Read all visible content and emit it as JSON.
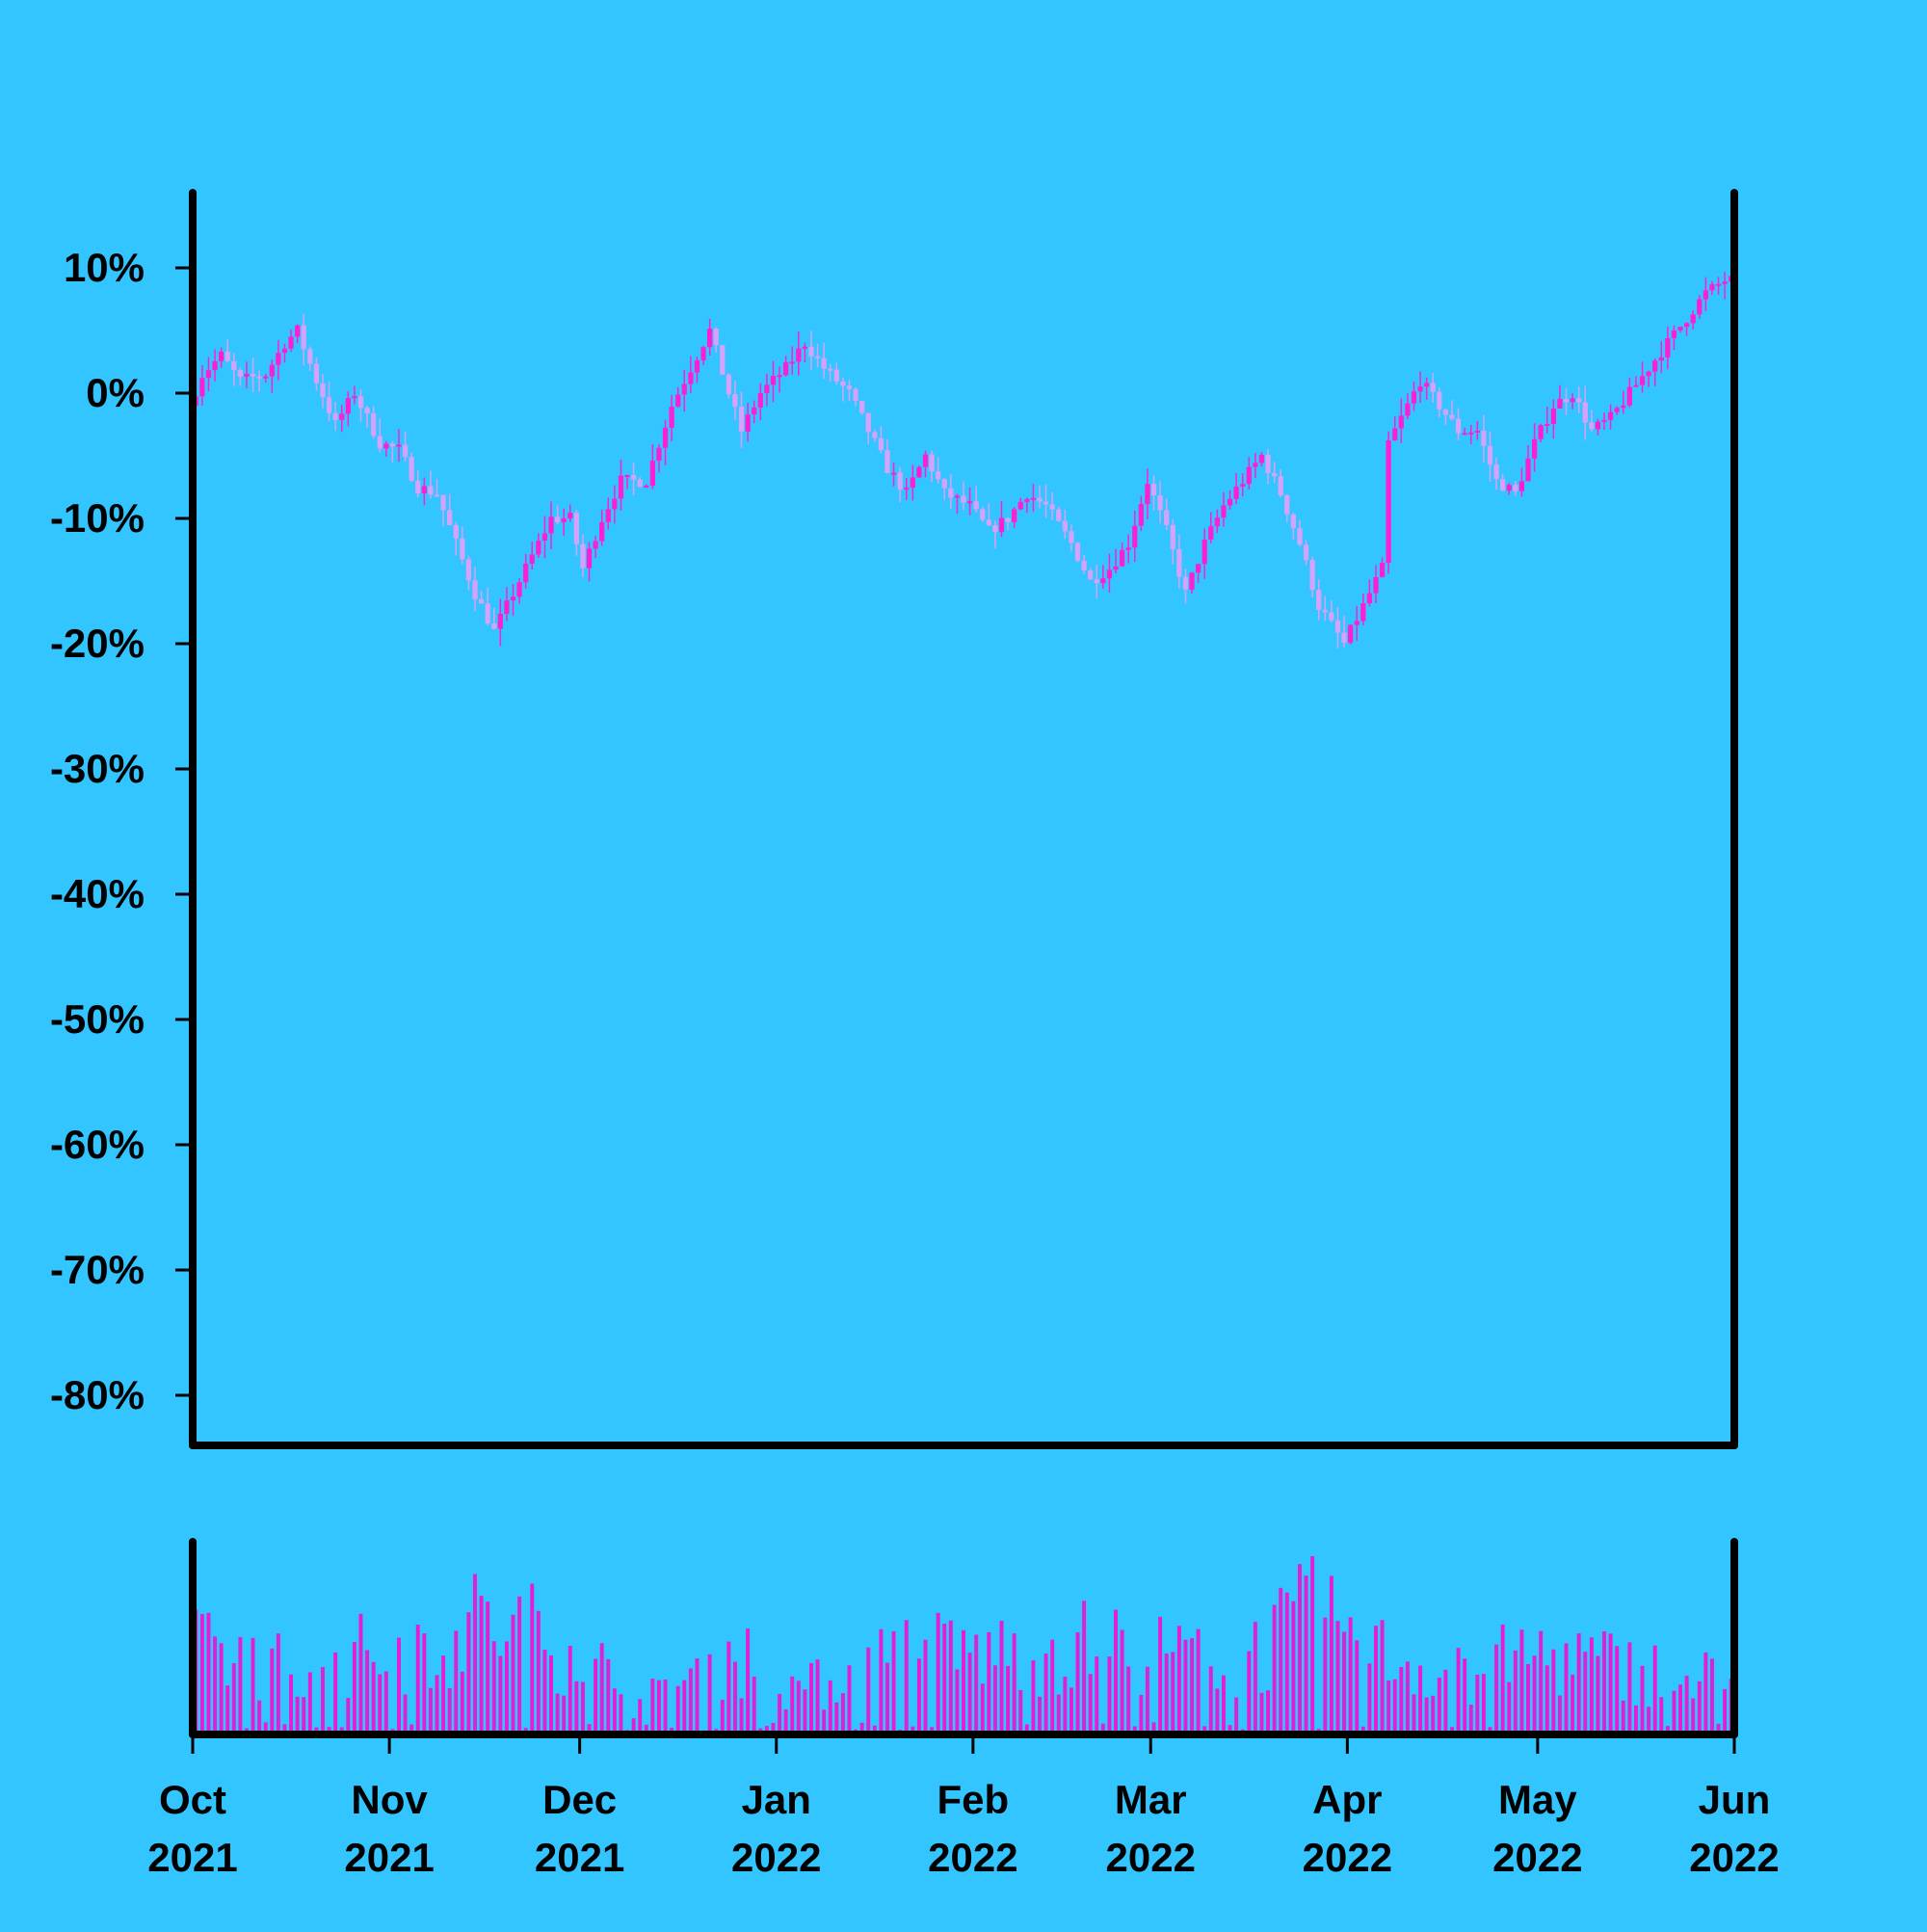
{
  "chart_data": [
    {
      "type": "candlestick",
      "title": "",
      "xlabel": "",
      "ylabel": "",
      "ylim": [
        -84,
        16
      ],
      "yticks": [
        10,
        0,
        -10,
        -20,
        -30,
        -40,
        -50,
        -60,
        -70,
        -80
      ],
      "ytick_labels": [
        "10%",
        "0%",
        "-10%",
        "-20%",
        "-30%",
        "-40%",
        "-50%",
        "-60%",
        "-70%",
        "-80%"
      ],
      "x_range": [
        "2021-10-01",
        "2022-06-01"
      ],
      "up_color": "#ff1fd2",
      "down_color": "#d6a2ff",
      "grid": false,
      "path_keypoints_date_pct": [
        [
          "2021-10-01",
          -1
        ],
        [
          "2021-10-03",
          1.5
        ],
        [
          "2021-10-06",
          3
        ],
        [
          "2021-10-09",
          1
        ],
        [
          "2021-10-13",
          1.5
        ],
        [
          "2021-10-16",
          4
        ],
        [
          "2021-10-18",
          5
        ],
        [
          "2021-10-21",
          1
        ],
        [
          "2021-10-24",
          -2.5
        ],
        [
          "2021-10-27",
          0
        ],
        [
          "2021-10-31",
          -4
        ],
        [
          "2021-11-03",
          -4.5
        ],
        [
          "2021-11-06",
          -7.5
        ],
        [
          "2021-11-09",
          -8
        ],
        [
          "2021-11-12",
          -12
        ],
        [
          "2021-11-15",
          -16
        ],
        [
          "2021-11-18",
          -19
        ],
        [
          "2021-11-21",
          -16
        ],
        [
          "2021-11-24",
          -13
        ],
        [
          "2021-11-27",
          -10
        ],
        [
          "2021-11-30",
          -10
        ],
        [
          "2021-12-02",
          -14
        ],
        [
          "2021-12-05",
          -10
        ],
        [
          "2021-12-08",
          -7
        ],
        [
          "2021-12-12",
          -7
        ],
        [
          "2021-12-16",
          -1
        ],
        [
          "2021-12-19",
          2
        ],
        [
          "2021-12-22",
          5
        ],
        [
          "2021-12-25",
          0
        ],
        [
          "2021-12-27",
          -3
        ],
        [
          "2021-12-30",
          0
        ],
        [
          "2022-01-03",
          2
        ],
        [
          "2022-01-06",
          4
        ],
        [
          "2022-01-09",
          2
        ],
        [
          "2022-01-13",
          0
        ],
        [
          "2022-01-16",
          -3
        ],
        [
          "2022-01-19",
          -6
        ],
        [
          "2022-01-22",
          -8
        ],
        [
          "2022-01-25",
          -5
        ],
        [
          "2022-01-28",
          -8
        ],
        [
          "2022-02-01",
          -9
        ],
        [
          "2022-02-04",
          -11
        ],
        [
          "2022-02-07",
          -10
        ],
        [
          "2022-02-10",
          -8
        ],
        [
          "2022-02-13",
          -9
        ],
        [
          "2022-02-17",
          -12
        ],
        [
          "2022-02-20",
          -15
        ],
        [
          "2022-02-23",
          -14
        ],
        [
          "2022-02-26",
          -12
        ],
        [
          "2022-03-01",
          -7
        ],
        [
          "2022-03-04",
          -11
        ],
        [
          "2022-03-07",
          -16
        ],
        [
          "2022-03-10",
          -12
        ],
        [
          "2022-03-13",
          -9
        ],
        [
          "2022-03-16",
          -7
        ],
        [
          "2022-03-19",
          -5
        ],
        [
          "2022-03-22",
          -8
        ],
        [
          "2022-03-25",
          -12
        ],
        [
          "2022-03-28",
          -17
        ],
        [
          "2022-04-01",
          -20
        ],
        [
          "2022-04-04",
          -17
        ],
        [
          "2022-04-07",
          -14
        ],
        [
          "2022-04-08",
          -4
        ],
        [
          "2022-04-11",
          -1
        ],
        [
          "2022-04-13",
          1
        ],
        [
          "2022-04-16",
          -1
        ],
        [
          "2022-04-19",
          -3
        ],
        [
          "2022-04-22",
          -3
        ],
        [
          "2022-04-25",
          -7
        ],
        [
          "2022-04-28",
          -8
        ],
        [
          "2022-05-01",
          -4
        ],
        [
          "2022-05-04",
          -1
        ],
        [
          "2022-05-07",
          0
        ],
        [
          "2022-05-10",
          -3
        ],
        [
          "2022-05-13",
          -2
        ],
        [
          "2022-05-16",
          0
        ],
        [
          "2022-05-19",
          2
        ],
        [
          "2022-05-22",
          4
        ],
        [
          "2022-05-25",
          6
        ],
        [
          "2022-05-28",
          8
        ],
        [
          "2022-05-31",
          9
        ]
      ],
      "x_tick_labels": [
        [
          "Oct",
          "2021"
        ],
        [
          "Nov",
          "2021"
        ],
        [
          "Dec",
          "2021"
        ],
        [
          "Jan",
          "2022"
        ],
        [
          "Feb",
          "2022"
        ],
        [
          "Mar",
          "2022"
        ],
        [
          "Apr",
          "2022"
        ],
        [
          "May",
          "2022"
        ],
        [
          "Jun",
          "2022"
        ]
      ],
      "x_tick_dates": [
        "2021-10-01",
        "2021-11-01",
        "2021-12-01",
        "2022-01-01",
        "2022-02-01",
        "2022-03-01",
        "2022-04-01",
        "2022-05-01",
        "2022-06-01"
      ]
    },
    {
      "type": "bar",
      "title": "",
      "ylabel": "",
      "bar_color": "#e21fd6",
      "volume_keypoints_date_relative": [
        [
          "2021-10-01",
          0.55
        ],
        [
          "2021-10-15",
          0.48
        ],
        [
          "2021-10-31",
          0.55
        ],
        [
          "2021-11-15",
          0.75
        ],
        [
          "2021-11-30",
          0.6
        ],
        [
          "2021-12-10",
          0.2
        ],
        [
          "2021-12-25",
          0.55
        ],
        [
          "2022-01-05",
          0.3
        ],
        [
          "2022-01-20",
          0.55
        ],
        [
          "2022-02-05",
          0.55
        ],
        [
          "2022-02-18",
          0.6
        ],
        [
          "2022-03-01",
          0.55
        ],
        [
          "2022-03-15",
          0.5
        ],
        [
          "2022-03-27",
          0.82
        ],
        [
          "2022-04-05",
          0.55
        ],
        [
          "2022-04-18",
          0.4
        ],
        [
          "2022-05-01",
          0.55
        ],
        [
          "2022-05-15",
          0.45
        ],
        [
          "2022-05-31",
          0.35
        ]
      ]
    }
  ]
}
